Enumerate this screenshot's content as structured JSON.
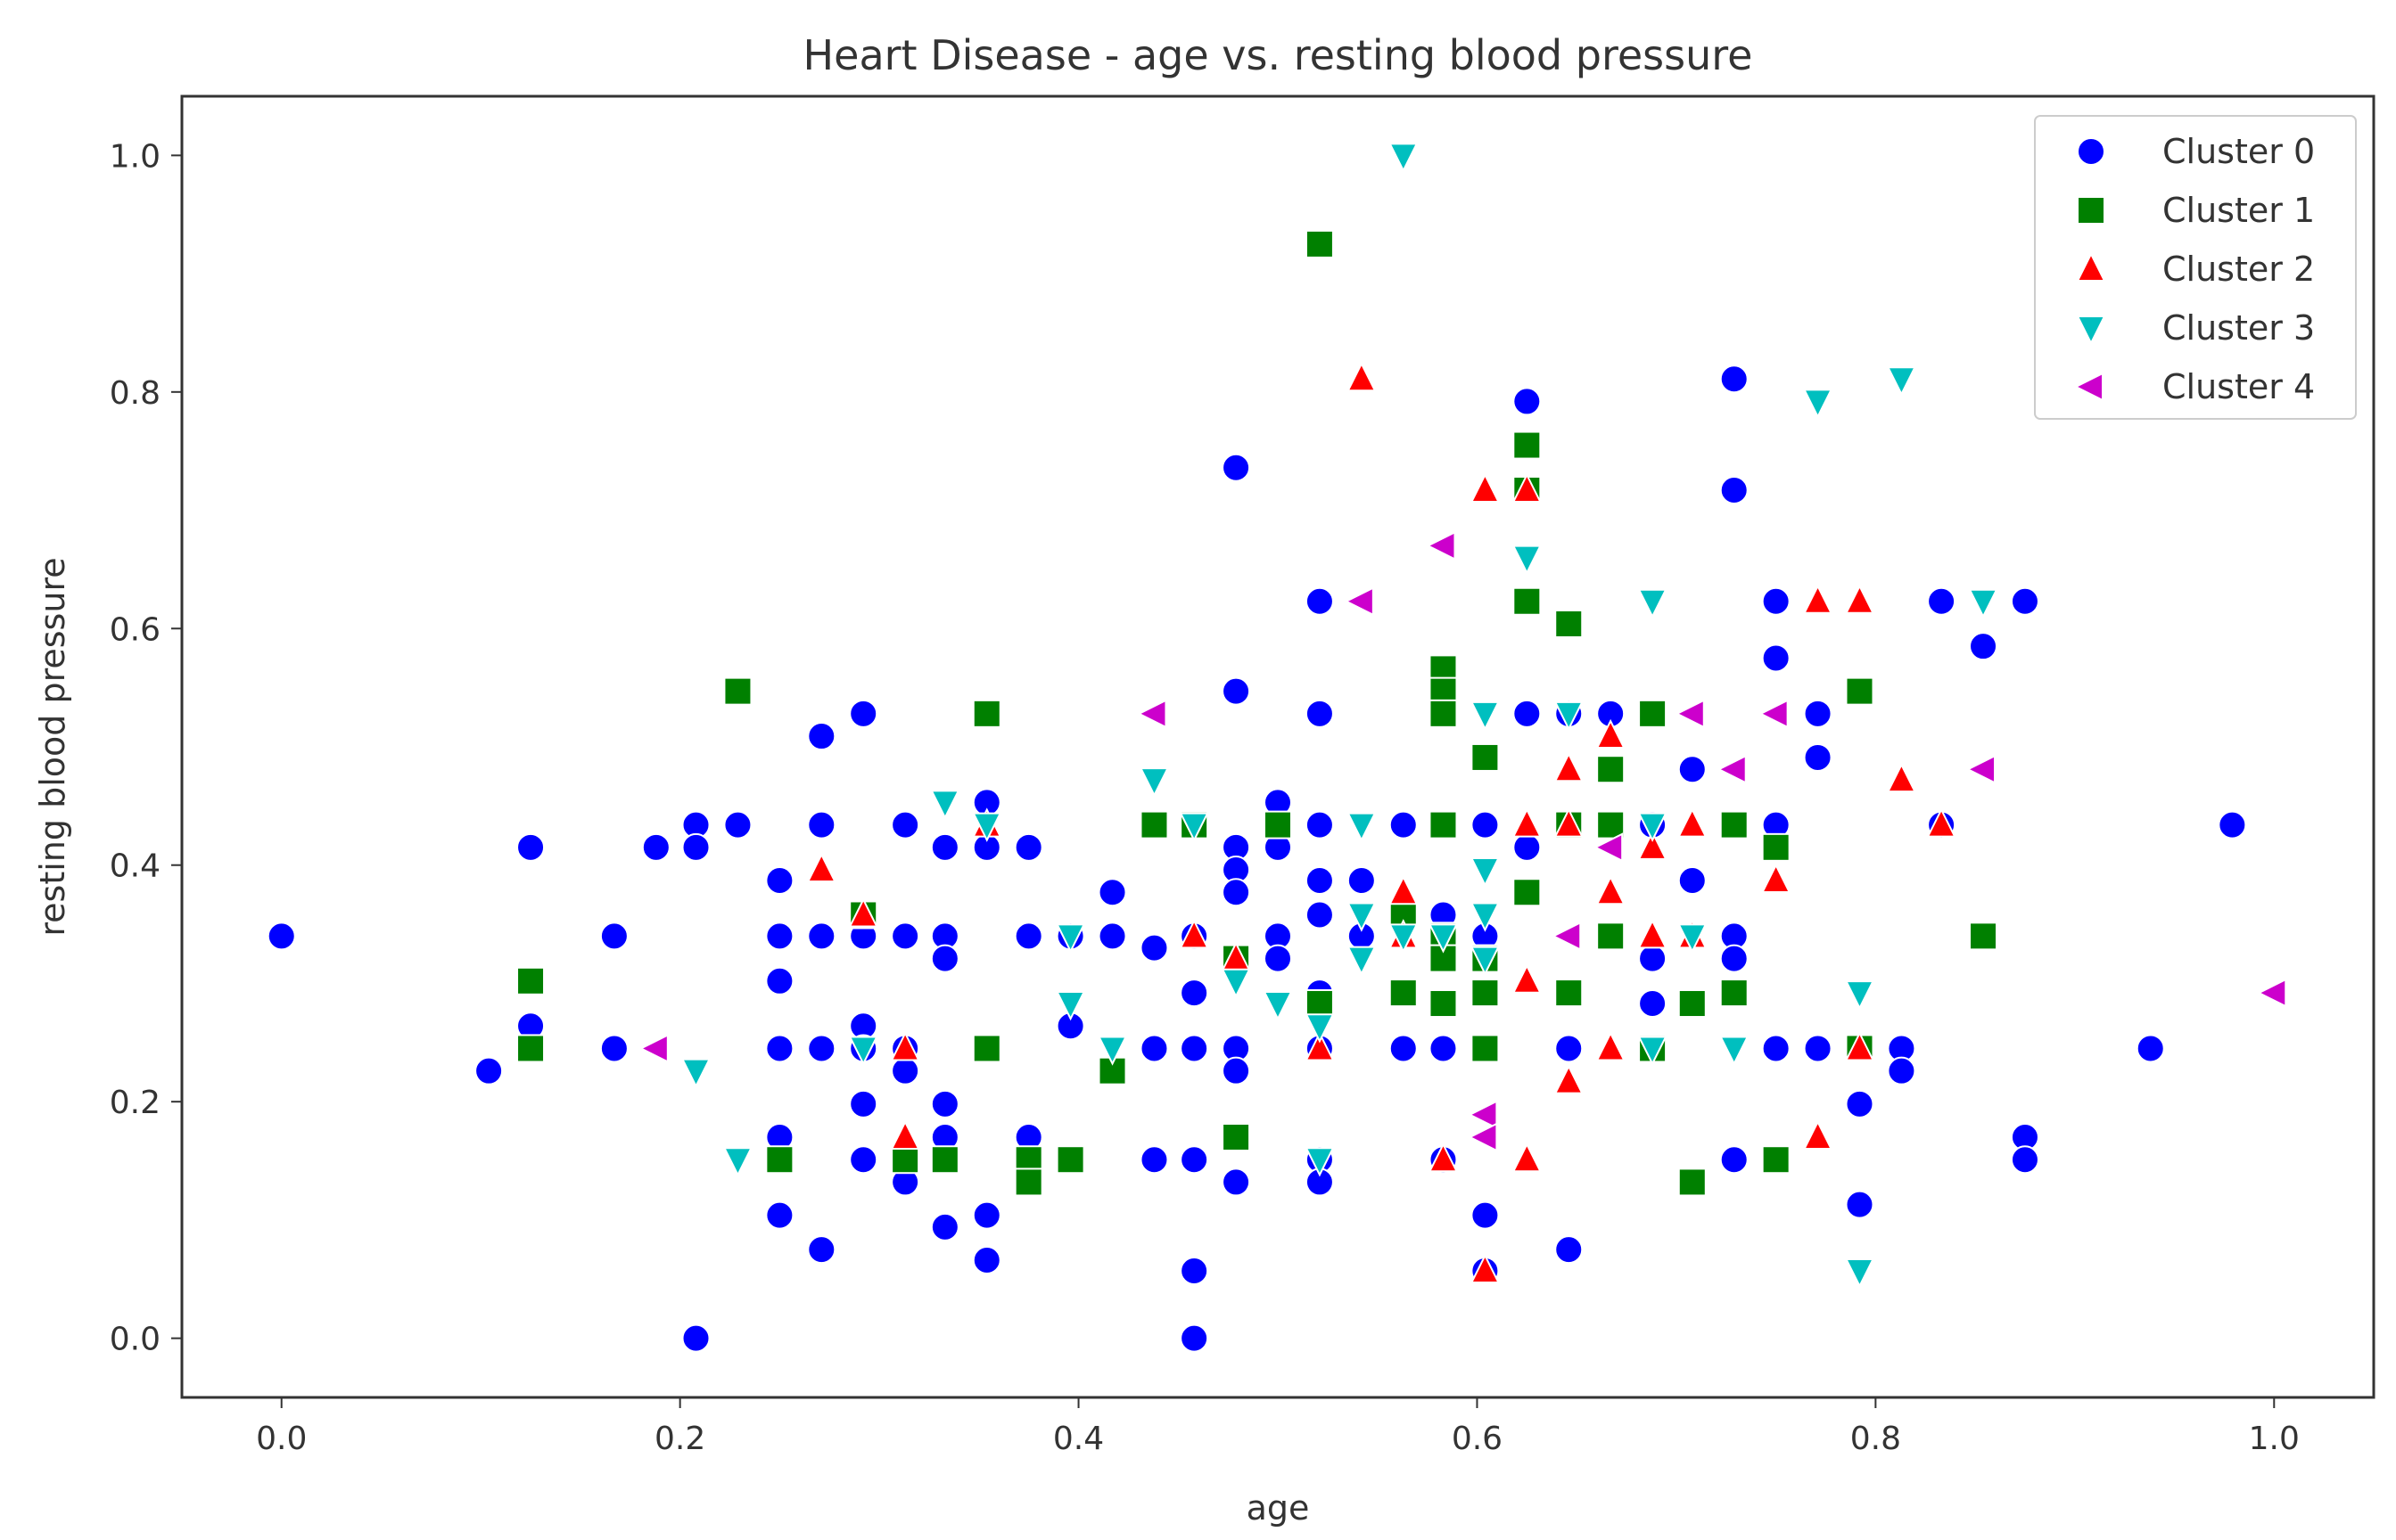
{
  "chart_data": {
    "type": "scatter",
    "title": "Heart Disease - age vs. resting blood pressure",
    "xlabel": "age",
    "ylabel": "resting blood pressure",
    "xlim": [
      -0.05,
      1.05
    ],
    "ylim": [
      -0.05,
      1.05
    ],
    "xticks": [
      {
        "value": 0.0,
        "label": "0.0"
      },
      {
        "value": 0.2,
        "label": "0.2"
      },
      {
        "value": 0.4,
        "label": "0.4"
      },
      {
        "value": 0.6,
        "label": "0.6"
      },
      {
        "value": 0.8,
        "label": "0.8"
      },
      {
        "value": 1.0,
        "label": "1.0"
      }
    ],
    "yticks": [
      {
        "value": 0.0,
        "label": "0.0"
      },
      {
        "value": 0.2,
        "label": "0.2"
      },
      {
        "value": 0.4,
        "label": "0.4"
      },
      {
        "value": 0.6,
        "label": "0.6"
      },
      {
        "value": 0.8,
        "label": "0.8"
      },
      {
        "value": 1.0,
        "label": "1.0"
      }
    ],
    "grid": false,
    "legend": "top-right",
    "series": [
      {
        "name": "Cluster 0",
        "marker": "circle",
        "color": "#0000ff",
        "points": [
          [
            0.0,
            0.34
          ],
          [
            0.104,
            0.226
          ],
          [
            0.125,
            0.415
          ],
          [
            0.125,
            0.264
          ],
          [
            0.167,
            0.34
          ],
          [
            0.167,
            0.245
          ],
          [
            0.188,
            0.415
          ],
          [
            0.208,
            0.434
          ],
          [
            0.208,
            0.415
          ],
          [
            0.208,
            0.0
          ],
          [
            0.229,
            0.434
          ],
          [
            0.25,
            0.387
          ],
          [
            0.25,
            0.34
          ],
          [
            0.25,
            0.302
          ],
          [
            0.25,
            0.245
          ],
          [
            0.25,
            0.17
          ],
          [
            0.25,
            0.104
          ],
          [
            0.271,
            0.509
          ],
          [
            0.271,
            0.434
          ],
          [
            0.271,
            0.34
          ],
          [
            0.271,
            0.245
          ],
          [
            0.271,
            0.075
          ],
          [
            0.292,
            0.528
          ],
          [
            0.292,
            0.34
          ],
          [
            0.292,
            0.264
          ],
          [
            0.292,
            0.245
          ],
          [
            0.292,
            0.198
          ],
          [
            0.292,
            0.151
          ],
          [
            0.313,
            0.434
          ],
          [
            0.313,
            0.34
          ],
          [
            0.313,
            0.245
          ],
          [
            0.313,
            0.226
          ],
          [
            0.313,
            0.132
          ],
          [
            0.333,
            0.415
          ],
          [
            0.333,
            0.34
          ],
          [
            0.333,
            0.321
          ],
          [
            0.333,
            0.198
          ],
          [
            0.333,
            0.17
          ],
          [
            0.333,
            0.094
          ],
          [
            0.354,
            0.453
          ],
          [
            0.354,
            0.415
          ],
          [
            0.354,
            0.104
          ],
          [
            0.354,
            0.066
          ],
          [
            0.375,
            0.415
          ],
          [
            0.375,
            0.34
          ],
          [
            0.375,
            0.17
          ],
          [
            0.396,
            0.34
          ],
          [
            0.396,
            0.264
          ],
          [
            0.417,
            0.377
          ],
          [
            0.417,
            0.34
          ],
          [
            0.438,
            0.33
          ],
          [
            0.438,
            0.245
          ],
          [
            0.438,
            0.151
          ],
          [
            0.458,
            0.34
          ],
          [
            0.458,
            0.292
          ],
          [
            0.458,
            0.245
          ],
          [
            0.458,
            0.151
          ],
          [
            0.458,
            0.057
          ],
          [
            0.458,
            0.0
          ],
          [
            0.479,
            0.736
          ],
          [
            0.479,
            0.547
          ],
          [
            0.479,
            0.415
          ],
          [
            0.479,
            0.396
          ],
          [
            0.479,
            0.377
          ],
          [
            0.479,
            0.245
          ],
          [
            0.479,
            0.226
          ],
          [
            0.479,
            0.132
          ],
          [
            0.5,
            0.453
          ],
          [
            0.5,
            0.415
          ],
          [
            0.5,
            0.34
          ],
          [
            0.5,
            0.321
          ],
          [
            0.521,
            0.623
          ],
          [
            0.521,
            0.528
          ],
          [
            0.521,
            0.434
          ],
          [
            0.521,
            0.387
          ],
          [
            0.521,
            0.358
          ],
          [
            0.521,
            0.292
          ],
          [
            0.521,
            0.245
          ],
          [
            0.521,
            0.151
          ],
          [
            0.521,
            0.132
          ],
          [
            0.542,
            0.387
          ],
          [
            0.542,
            0.34
          ],
          [
            0.563,
            0.434
          ],
          [
            0.563,
            0.245
          ],
          [
            0.583,
            0.358
          ],
          [
            0.583,
            0.245
          ],
          [
            0.583,
            0.151
          ],
          [
            0.604,
            0.434
          ],
          [
            0.604,
            0.34
          ],
          [
            0.604,
            0.104
          ],
          [
            0.604,
            0.057
          ],
          [
            0.625,
            0.792
          ],
          [
            0.625,
            0.528
          ],
          [
            0.625,
            0.415
          ],
          [
            0.646,
            0.528
          ],
          [
            0.646,
            0.245
          ],
          [
            0.646,
            0.075
          ],
          [
            0.667,
            0.528
          ],
          [
            0.688,
            0.434
          ],
          [
            0.688,
            0.321
          ],
          [
            0.688,
            0.283
          ],
          [
            0.708,
            0.481
          ],
          [
            0.708,
            0.387
          ],
          [
            0.729,
            0.811
          ],
          [
            0.729,
            0.717
          ],
          [
            0.729,
            0.34
          ],
          [
            0.729,
            0.321
          ],
          [
            0.729,
            0.151
          ],
          [
            0.75,
            0.623
          ],
          [
            0.75,
            0.575
          ],
          [
            0.75,
            0.434
          ],
          [
            0.75,
            0.245
          ],
          [
            0.771,
            0.528
          ],
          [
            0.771,
            0.491
          ],
          [
            0.771,
            0.245
          ],
          [
            0.792,
            0.198
          ],
          [
            0.792,
            0.113
          ],
          [
            0.813,
            0.245
          ],
          [
            0.813,
            0.226
          ],
          [
            0.833,
            0.623
          ],
          [
            0.833,
            0.434
          ],
          [
            0.854,
            0.585
          ],
          [
            0.875,
            0.623
          ],
          [
            0.875,
            0.17
          ],
          [
            0.875,
            0.151
          ],
          [
            0.938,
            0.245
          ],
          [
            0.979,
            0.434
          ]
        ]
      },
      {
        "name": "Cluster 1",
        "marker": "square",
        "color": "#008000",
        "points": [
          [
            0.125,
            0.302
          ],
          [
            0.125,
            0.245
          ],
          [
            0.229,
            0.547
          ],
          [
            0.25,
            0.151
          ],
          [
            0.292,
            0.358
          ],
          [
            0.313,
            0.151
          ],
          [
            0.333,
            0.151
          ],
          [
            0.354,
            0.528
          ],
          [
            0.354,
            0.245
          ],
          [
            0.375,
            0.151
          ],
          [
            0.375,
            0.132
          ],
          [
            0.396,
            0.151
          ],
          [
            0.417,
            0.226
          ],
          [
            0.438,
            0.434
          ],
          [
            0.458,
            0.434
          ],
          [
            0.479,
            0.321
          ],
          [
            0.479,
            0.17
          ],
          [
            0.5,
            0.434
          ],
          [
            0.521,
            0.925
          ],
          [
            0.521,
            0.283
          ],
          [
            0.563,
            0.358
          ],
          [
            0.563,
            0.292
          ],
          [
            0.583,
            0.566
          ],
          [
            0.583,
            0.547
          ],
          [
            0.583,
            0.528
          ],
          [
            0.583,
            0.434
          ],
          [
            0.583,
            0.34
          ],
          [
            0.583,
            0.321
          ],
          [
            0.583,
            0.283
          ],
          [
            0.604,
            0.491
          ],
          [
            0.604,
            0.321
          ],
          [
            0.604,
            0.292
          ],
          [
            0.604,
            0.245
          ],
          [
            0.625,
            0.755
          ],
          [
            0.625,
            0.717
          ],
          [
            0.625,
            0.623
          ],
          [
            0.625,
            0.377
          ],
          [
            0.646,
            0.604
          ],
          [
            0.646,
            0.434
          ],
          [
            0.646,
            0.292
          ],
          [
            0.667,
            0.481
          ],
          [
            0.667,
            0.434
          ],
          [
            0.667,
            0.34
          ],
          [
            0.688,
            0.528
          ],
          [
            0.688,
            0.245
          ],
          [
            0.708,
            0.283
          ],
          [
            0.708,
            0.132
          ],
          [
            0.729,
            0.434
          ],
          [
            0.729,
            0.292
          ],
          [
            0.75,
            0.415
          ],
          [
            0.75,
            0.151
          ],
          [
            0.792,
            0.547
          ],
          [
            0.792,
            0.245
          ],
          [
            0.854,
            0.34
          ]
        ]
      },
      {
        "name": "Cluster 2",
        "marker": "triangle-up",
        "color": "#ff0000",
        "points": [
          [
            0.271,
            0.396
          ],
          [
            0.292,
            0.358
          ],
          [
            0.313,
            0.245
          ],
          [
            0.313,
            0.17
          ],
          [
            0.354,
            0.434
          ],
          [
            0.458,
            0.34
          ],
          [
            0.479,
            0.321
          ],
          [
            0.521,
            0.245
          ],
          [
            0.542,
            0.811
          ],
          [
            0.563,
            0.377
          ],
          [
            0.563,
            0.34
          ],
          [
            0.583,
            0.151
          ],
          [
            0.604,
            0.717
          ],
          [
            0.604,
            0.057
          ],
          [
            0.625,
            0.717
          ],
          [
            0.625,
            0.434
          ],
          [
            0.625,
            0.302
          ],
          [
            0.625,
            0.151
          ],
          [
            0.646,
            0.481
          ],
          [
            0.646,
            0.434
          ],
          [
            0.646,
            0.217
          ],
          [
            0.667,
            0.509
          ],
          [
            0.667,
            0.377
          ],
          [
            0.667,
            0.245
          ],
          [
            0.688,
            0.415
          ],
          [
            0.688,
            0.34
          ],
          [
            0.708,
            0.434
          ],
          [
            0.708,
            0.34
          ],
          [
            0.75,
            0.387
          ],
          [
            0.771,
            0.623
          ],
          [
            0.771,
            0.17
          ],
          [
            0.792,
            0.623
          ],
          [
            0.792,
            0.245
          ],
          [
            0.813,
            0.472
          ],
          [
            0.833,
            0.434
          ]
        ]
      },
      {
        "name": "Cluster 3",
        "marker": "triangle-down",
        "color": "#00bfbf",
        "points": [
          [
            0.208,
            0.226
          ],
          [
            0.229,
            0.151
          ],
          [
            0.292,
            0.245
          ],
          [
            0.333,
            0.453
          ],
          [
            0.354,
            0.434
          ],
          [
            0.396,
            0.34
          ],
          [
            0.396,
            0.283
          ],
          [
            0.417,
            0.245
          ],
          [
            0.438,
            0.472
          ],
          [
            0.458,
            0.434
          ],
          [
            0.479,
            0.302
          ],
          [
            0.5,
            0.283
          ],
          [
            0.521,
            0.264
          ],
          [
            0.521,
            0.151
          ],
          [
            0.542,
            0.434
          ],
          [
            0.542,
            0.358
          ],
          [
            0.542,
            0.321
          ],
          [
            0.563,
            1.0
          ],
          [
            0.563,
            0.34
          ],
          [
            0.583,
            0.34
          ],
          [
            0.604,
            0.528
          ],
          [
            0.604,
            0.396
          ],
          [
            0.604,
            0.358
          ],
          [
            0.604,
            0.321
          ],
          [
            0.625,
            0.66
          ],
          [
            0.646,
            0.528
          ],
          [
            0.688,
            0.623
          ],
          [
            0.688,
            0.434
          ],
          [
            0.688,
            0.245
          ],
          [
            0.708,
            0.34
          ],
          [
            0.729,
            0.245
          ],
          [
            0.771,
            0.792
          ],
          [
            0.792,
            0.292
          ],
          [
            0.792,
            0.057
          ],
          [
            0.813,
            0.811
          ],
          [
            0.854,
            0.623
          ]
        ]
      },
      {
        "name": "Cluster 4",
        "marker": "triangle-left",
        "color": "#cc00cc",
        "points": [
          [
            0.188,
            0.245
          ],
          [
            0.438,
            0.528
          ],
          [
            0.542,
            0.623
          ],
          [
            0.583,
            0.67
          ],
          [
            0.604,
            0.189
          ],
          [
            0.604,
            0.17
          ],
          [
            0.646,
            0.34
          ],
          [
            0.667,
            0.415
          ],
          [
            0.708,
            0.528
          ],
          [
            0.729,
            0.481
          ],
          [
            0.75,
            0.528
          ],
          [
            0.854,
            0.481
          ],
          [
            1.0,
            0.292
          ]
        ]
      }
    ]
  }
}
